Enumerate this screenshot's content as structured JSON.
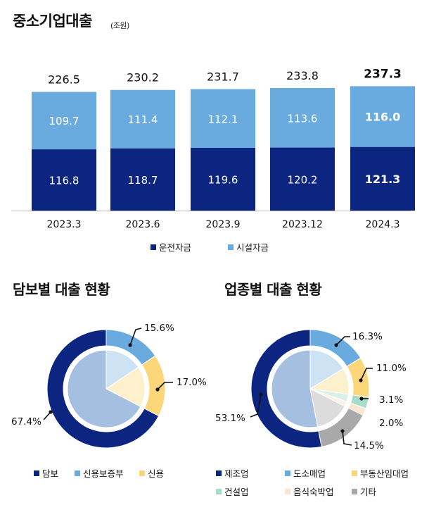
{
  "page": {
    "title": "중소기업대출",
    "unit": "(조원)",
    "pie1_title": "담보별 대출 현황",
    "pie2_title": "업종별 대출 현황"
  },
  "colors": {
    "dark_navy": "#0b2580",
    "light_blue": "#6aabdf",
    "yellow": "#fcd779",
    "mint": "#a7dcc8",
    "peach": "#fbe4d2",
    "gray": "#a9a9a9",
    "inner_navy": "#a4bfe0",
    "inner_blue": "#cde2f3",
    "inner_yellow": "#fdf0cc",
    "inner_mint": "#d9efe7",
    "inner_peach": "#fdf1e7",
    "inner_gray": "#dcdcdc"
  },
  "chart_data": [
    {
      "type": "bar",
      "stacked": true,
      "categories": [
        "2023.3",
        "2023.6",
        "2023.9",
        "2023.12",
        "2024.3"
      ],
      "series": [
        {
          "name": "운전자금",
          "values": [
            116.8,
            118.7,
            119.6,
            120.2,
            121.3
          ],
          "color": "#0b2580"
        },
        {
          "name": "시설자금",
          "values": [
            109.7,
            111.4,
            112.1,
            113.6,
            116.0
          ],
          "color": "#6aabdf"
        }
      ],
      "totals": [
        226.5,
        230.2,
        231.7,
        233.8,
        237.3
      ],
      "legend": "bottom",
      "grid": false
    },
    {
      "type": "pie",
      "title": "담보별 대출 현황",
      "labels": [
        "담보",
        "신용보증부",
        "신용"
      ],
      "values": [
        67.4,
        15.6,
        17.0
      ],
      "value_labels": [
        "67.4%",
        "15.6%",
        "17.0%"
      ],
      "colors": [
        "#0b2580",
        "#6aabdf",
        "#fcd779"
      ],
      "legend": "bottom"
    },
    {
      "type": "pie",
      "title": "업종별 대출 현황",
      "labels": [
        "제조업",
        "도소매업",
        "부동산임대업",
        "건설업",
        "음식숙박업",
        "기타"
      ],
      "values": [
        53.1,
        16.3,
        11.0,
        3.1,
        2.0,
        14.5
      ],
      "value_labels": [
        "53.1%",
        "16.3%",
        "11.0%",
        "3.1%",
        "2.0%",
        "14.5%"
      ],
      "colors": [
        "#0b2580",
        "#6aabdf",
        "#fcd779",
        "#a7dcc8",
        "#fbe4d2",
        "#a9a9a9"
      ],
      "legend": "bottom"
    }
  ]
}
